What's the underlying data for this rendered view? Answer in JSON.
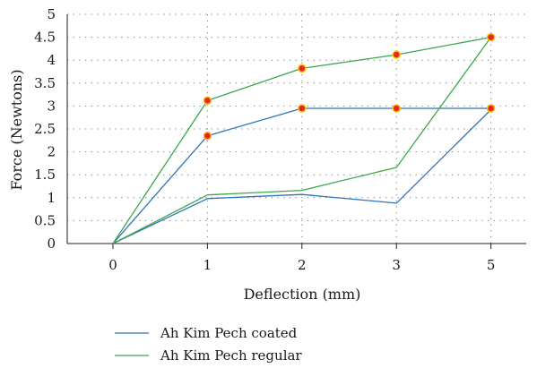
{
  "chart_data": {
    "type": "line",
    "x_categories": [
      "0",
      "1",
      "2",
      "3",
      "5"
    ],
    "xlabel": "Deflection (mm)",
    "ylabel": "Force (Newtons)",
    "ylim": [
      0,
      5
    ],
    "yticks": [
      "0",
      "0.5",
      "1",
      "1.5",
      "2",
      "2.5",
      "3",
      "3.5",
      "4",
      "4.5",
      "5"
    ],
    "grid": "dotted",
    "legend_position": "bottom-left",
    "series": [
      {
        "name": "Ah Kim Pech coated",
        "color": "#2e75b6",
        "loading": [
          0,
          2.35,
          2.95,
          2.95,
          2.95
        ],
        "unloading": [
          0,
          0.98,
          1.07,
          0.88,
          2.92
        ]
      },
      {
        "name": "Ah Kim Pech regular",
        "color": "#3aa84a",
        "loading": [
          0,
          3.12,
          3.82,
          4.12,
          4.5
        ],
        "unloading": [
          0,
          1.06,
          1.16,
          1.66,
          4.5
        ]
      }
    ],
    "marker_color": "#e8232b",
    "marker_outline": "#f4c300"
  }
}
